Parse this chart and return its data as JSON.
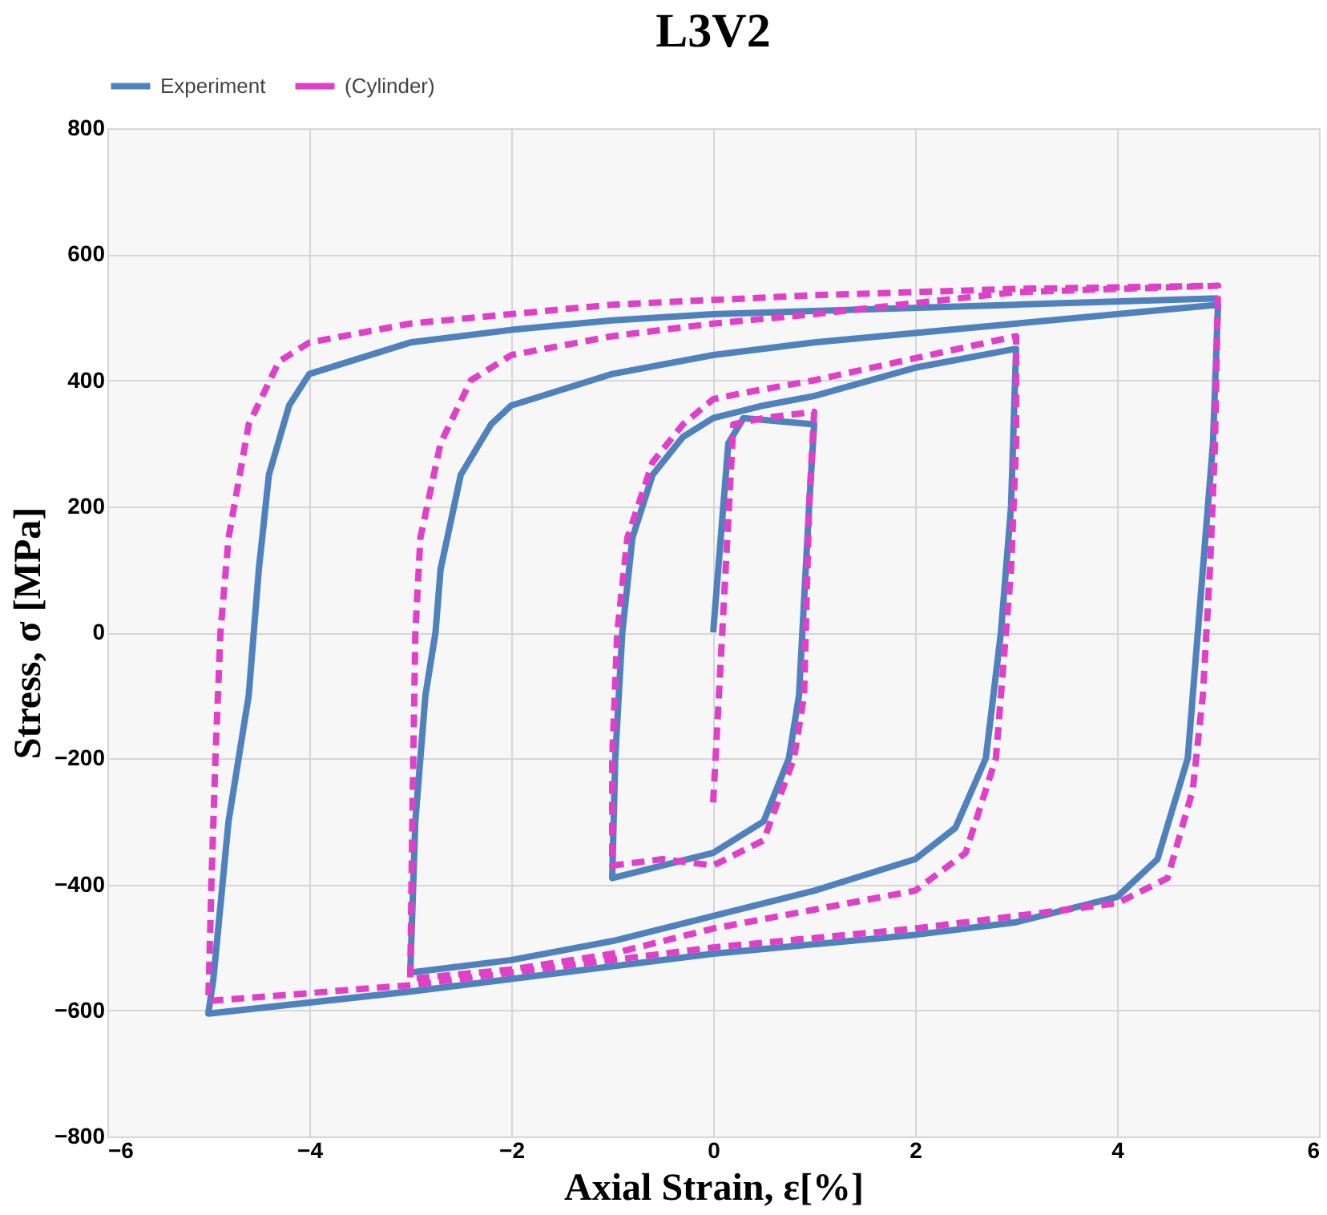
{
  "chart_data": {
    "type": "line",
    "title": "L3V2",
    "xlabel": "Axial Strain, ε[%]",
    "ylabel": "Stress, σ [MPa]",
    "xlim": [
      -6,
      6
    ],
    "xticks": [
      -6,
      -4,
      -2,
      0,
      2,
      4,
      6
    ],
    "ylim": [
      -800,
      800
    ],
    "yticks": [
      -800,
      -600,
      -400,
      -200,
      0,
      200,
      400,
      600,
      800
    ],
    "grid": true,
    "legend": "top",
    "marker": "none",
    "series": [
      {
        "name": "Experiment",
        "color": "#4f81bd",
        "line_style": "solid",
        "x": [
          0,
          0.15,
          0.3,
          1,
          0.95,
          0.85,
          0.75,
          0.5,
          0,
          -0.5,
          -1,
          -0.97,
          -0.9,
          -0.8,
          -0.6,
          -0.3,
          0,
          0.5,
          1,
          2,
          3,
          2.95,
          2.85,
          2.7,
          2.4,
          2,
          1,
          0,
          -1,
          -2,
          -3,
          -2.95,
          -2.85,
          -2.75,
          -2.7,
          -2.5,
          -2.2,
          -2,
          -1,
          0,
          1,
          2,
          3,
          5,
          4.95,
          4.85,
          4.8,
          4.7,
          4.4,
          4,
          3,
          2,
          0,
          -2,
          -3,
          -5,
          -4.95,
          -4.8,
          -4.6,
          -4.5,
          -4.4,
          -4.2,
          -4,
          -3,
          -2,
          -1,
          0,
          1,
          3,
          5
        ],
        "values": [
          0,
          300,
          340,
          330,
          200,
          -100,
          -200,
          -300,
          -350,
          -370,
          -390,
          -200,
          0,
          150,
          250,
          310,
          340,
          360,
          375,
          420,
          450,
          200,
          0,
          -200,
          -310,
          -360,
          -410,
          -450,
          -490,
          -520,
          -540,
          -300,
          -100,
          0,
          100,
          250,
          330,
          360,
          410,
          440,
          460,
          475,
          490,
          520,
          300,
          100,
          0,
          -200,
          -360,
          -420,
          -460,
          -480,
          -510,
          -550,
          -570,
          -605,
          -550,
          -300,
          -100,
          100,
          250,
          360,
          410,
          460,
          480,
          495,
          505,
          510,
          520,
          530
        ]
      },
      {
        "name": "(Cylinder)",
        "color": "#e040c8",
        "line_style": "dashed",
        "x": [
          0,
          0.2,
          0.5,
          1,
          0.95,
          0.9,
          0.8,
          0.5,
          0,
          -0.5,
          -1,
          -1,
          -0.95,
          -0.85,
          -0.6,
          -0.3,
          0,
          0.3,
          1,
          3,
          3,
          2.95,
          2.9,
          2.8,
          2.5,
          2,
          1,
          0,
          -1,
          -2,
          -3,
          -2.98,
          -2.95,
          -2.9,
          -2.7,
          -2.4,
          -2,
          -1,
          0,
          1,
          3,
          5,
          4.97,
          4.92,
          4.85,
          4.75,
          4.5,
          4,
          3,
          2,
          0,
          -2,
          -3,
          -5,
          -4.97,
          -4.93,
          -4.88,
          -4.8,
          -4.6,
          -4.3,
          -4,
          -3,
          -1,
          1,
          3,
          5
        ],
        "values": [
          -270,
          330,
          340,
          350,
          200,
          -100,
          -200,
          -330,
          -370,
          -360,
          -370,
          -200,
          0,
          150,
          270,
          330,
          370,
          380,
          400,
          470,
          300,
          100,
          0,
          -200,
          -350,
          -410,
          -440,
          -470,
          -510,
          -535,
          -550,
          -300,
          0,
          150,
          300,
          400,
          440,
          470,
          490,
          505,
          540,
          550,
          300,
          100,
          -100,
          -250,
          -390,
          -430,
          -450,
          -470,
          -500,
          -540,
          -560,
          -585,
          -400,
          -200,
          0,
          150,
          330,
          430,
          460,
          490,
          520,
          535,
          545,
          550
        ]
      }
    ]
  }
}
